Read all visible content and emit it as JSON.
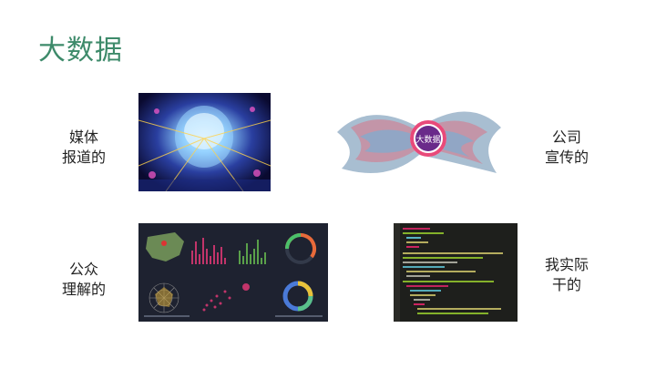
{
  "slide": {
    "title": "大数据",
    "quadrants": [
      {
        "label_line1": "媒体",
        "label_line2": "报道的",
        "image": "ai-brain-head-image"
      },
      {
        "label_line1": "公司",
        "label_line2": "宣传的",
        "image": "big-data-word-cloud-image"
      },
      {
        "label_line1": "公众",
        "label_line2": "理解的",
        "image": "dashboard-charts-image"
      },
      {
        "label_line1": "我实际",
        "label_line2": "干的",
        "image": "code-editor-image"
      }
    ],
    "wordcloud_badge": "大数据"
  },
  "colors": {
    "title": "#3d8a6a",
    "dashboard_bg": "#1e2230",
    "code_bg": "#1e1f1c"
  }
}
